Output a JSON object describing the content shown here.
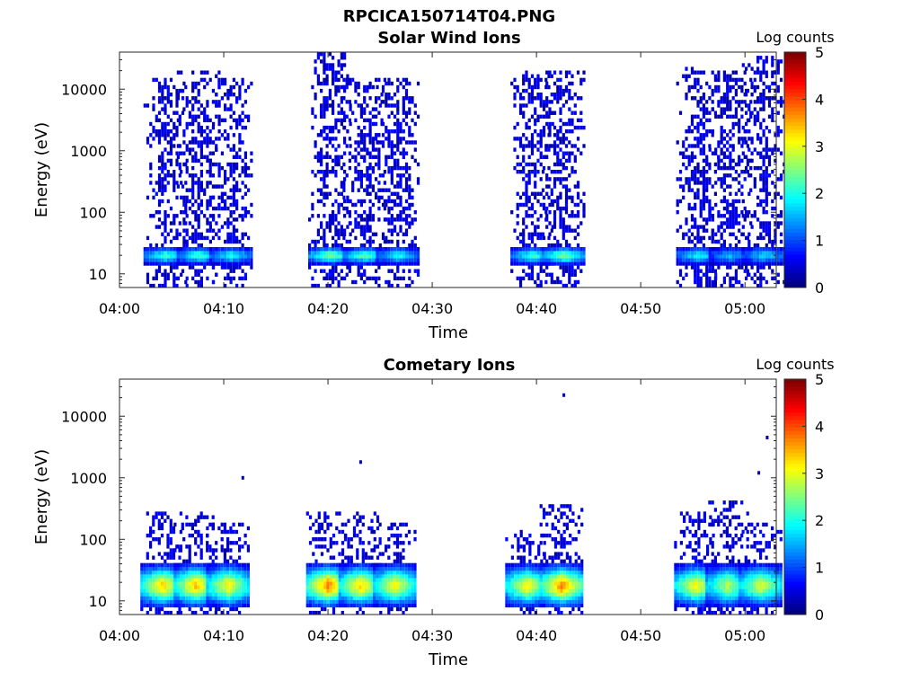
{
  "figure": {
    "title": "RPCICA150714T04.PNG"
  },
  "chart_data": [
    {
      "type": "heatmap",
      "title": "Solar Wind Ions",
      "xlabel": "Time",
      "ylabel": "Energy (eV)",
      "x_ticks": [
        "04:00",
        "04:10",
        "04:20",
        "04:30",
        "04:40",
        "04:50",
        "05:00"
      ],
      "x_range_min": [
        0,
        63
      ],
      "y_ticks": [
        "10",
        "100",
        "1000",
        "10000"
      ],
      "y_scale": "log",
      "y_range_eV": [
        6,
        40000
      ],
      "colorbar": {
        "label": "Log counts",
        "ticks": [
          "0",
          "1",
          "2",
          "3",
          "4",
          "5"
        ],
        "range": [
          0,
          5
        ],
        "colormap": "jet"
      },
      "bursts": [
        {
          "t_min": 4.3,
          "e_max": 15000,
          "peak_log_counts": 2.0,
          "sparse_low": true
        },
        {
          "t_min": 7.5,
          "e_max": 20000,
          "peak_log_counts": 2.0,
          "sparse_low": true
        },
        {
          "t_min": 10.6,
          "e_max": 15000,
          "peak_log_counts": 1.8,
          "sparse_low": false
        },
        {
          "t_min": 20.1,
          "e_max": 40000,
          "peak_log_counts": 2.4,
          "sparse_low": true
        },
        {
          "t_min": 23.4,
          "e_max": 15000,
          "peak_log_counts": 2.2,
          "sparse_low": false
        },
        {
          "t_min": 26.6,
          "e_max": 15000,
          "peak_log_counts": 1.8,
          "sparse_low": false
        },
        {
          "t_min": 39.5,
          "e_max": 20000,
          "peak_log_counts": 2.0,
          "sparse_low": true
        },
        {
          "t_min": 42.5,
          "e_max": 20000,
          "peak_log_counts": 2.4,
          "sparse_low": false
        },
        {
          "t_min": 55.4,
          "e_max": 22000,
          "peak_log_counts": 1.8,
          "sparse_low": true
        },
        {
          "t_min": 58.5,
          "e_max": 20000,
          "peak_log_counts": 1.4,
          "sparse_low": false
        },
        {
          "t_min": 61.7,
          "e_max": 35000,
          "peak_log_counts": 1.6,
          "sparse_low": false
        }
      ]
    },
    {
      "type": "heatmap",
      "title": "Cometary Ions",
      "xlabel": "Time",
      "ylabel": "Energy (eV)",
      "x_ticks": [
        "04:00",
        "04:10",
        "04:20",
        "04:30",
        "04:40",
        "04:50",
        "05:00"
      ],
      "x_range_min": [
        0,
        63
      ],
      "y_ticks": [
        "10",
        "100",
        "1000",
        "10000"
      ],
      "y_scale": "log",
      "y_range_eV": [
        6,
        40000
      ],
      "colorbar": {
        "label": "Log counts",
        "ticks": [
          "0",
          "1",
          "2",
          "3",
          "4",
          "5"
        ],
        "range": [
          0,
          5
        ],
        "colormap": "jet"
      },
      "bursts": [
        {
          "t_min": 4.0,
          "e_max": 300,
          "peak_log_counts": 3.2
        },
        {
          "t_min": 7.2,
          "e_max": 300,
          "peak_log_counts": 3.3
        },
        {
          "t_min": 10.3,
          "e_max": 200,
          "peak_log_counts": 3.0
        },
        {
          "t_min": 19.9,
          "e_max": 300,
          "peak_log_counts": 3.6
        },
        {
          "t_min": 23.0,
          "e_max": 300,
          "peak_log_counts": 3.2
        },
        {
          "t_min": 26.3,
          "e_max": 200,
          "peak_log_counts": 3.0
        },
        {
          "t_min": 39.0,
          "e_max": 150,
          "peak_log_counts": 3.0
        },
        {
          "t_min": 42.3,
          "e_max": 350,
          "peak_log_counts": 3.6
        },
        {
          "t_min": 55.2,
          "e_max": 300,
          "peak_log_counts": 3.0
        },
        {
          "t_min": 58.2,
          "e_max": 400,
          "peak_log_counts": 2.6
        },
        {
          "t_min": 61.4,
          "e_max": 200,
          "peak_log_counts": 2.8
        }
      ],
      "isolated_points": [
        {
          "t_min": 11.7,
          "e": 1000
        },
        {
          "t_min": 23.0,
          "e": 1800
        },
        {
          "t_min": 42.5,
          "e": 22000
        },
        {
          "t_min": 61.2,
          "e": 1200
        },
        {
          "t_min": 62.0,
          "e": 4500
        }
      ]
    }
  ]
}
